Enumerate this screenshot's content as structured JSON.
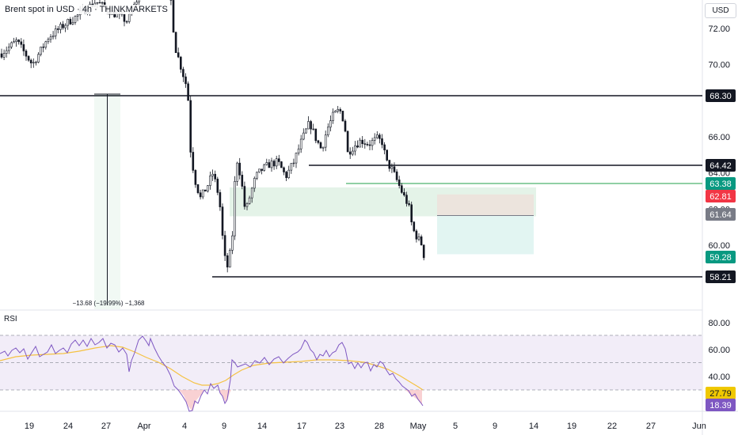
{
  "header": {
    "title": "Brent spot in USD · 4h · THINKMARKETS",
    "unit": "USD",
    "rsi_label": "RSI"
  },
  "chart_data": [
    {
      "type": "candlestick",
      "xlabel": "",
      "ylabel": "",
      "x_ticks": [
        "19",
        "24",
        "27",
        "Apr",
        "4",
        "9",
        "14",
        "17",
        "23",
        "28",
        "May",
        "5",
        "9",
        "14",
        "19",
        "22",
        "27",
        "Jun"
      ],
      "y_ticks": [
        "72.00",
        "70.00",
        "66.00",
        "64.00",
        "62.00",
        "60.00"
      ],
      "ylim": [
        57.6,
        74.2
      ],
      "price_labels": [
        {
          "value": "68.30",
          "color": "#131722"
        },
        {
          "value": "64.42",
          "color": "#131722"
        },
        {
          "value": "63.38",
          "color": "#089981"
        },
        {
          "value": "62.81",
          "color": "#f23645"
        },
        {
          "value": "61.64",
          "color": "#787b86"
        },
        {
          "value": "59.28",
          "color": "#089981"
        },
        {
          "value": "58.21",
          "color": "#131722"
        }
      ],
      "horizontal_levels": [
        68.3,
        64.42,
        63.38,
        58.21
      ],
      "zones": [
        {
          "name": "demand-zone",
          "from": 61.6,
          "to": 63.2,
          "color": "#e4f3e8"
        },
        {
          "name": "position-stop",
          "from": 61.64,
          "to": 62.81,
          "color": "#ece4dd"
        },
        {
          "name": "position-target",
          "from": 59.5,
          "to": 61.64,
          "color": "#e2f5f2"
        }
      ],
      "measurement": "−13.68 (−19.99%) −1,368",
      "close": 59.28
    },
    {
      "type": "line",
      "name": "RSI",
      "y_ticks": [
        "80.00",
        "60.00",
        "40.00"
      ],
      "ylim": [
        10,
        90
      ],
      "levels": [
        70,
        50,
        30
      ],
      "value_labels": [
        {
          "value": "27.79",
          "color": "#f0c800"
        },
        {
          "value": "18.39",
          "color": "#7e57c2"
        }
      ]
    }
  ]
}
